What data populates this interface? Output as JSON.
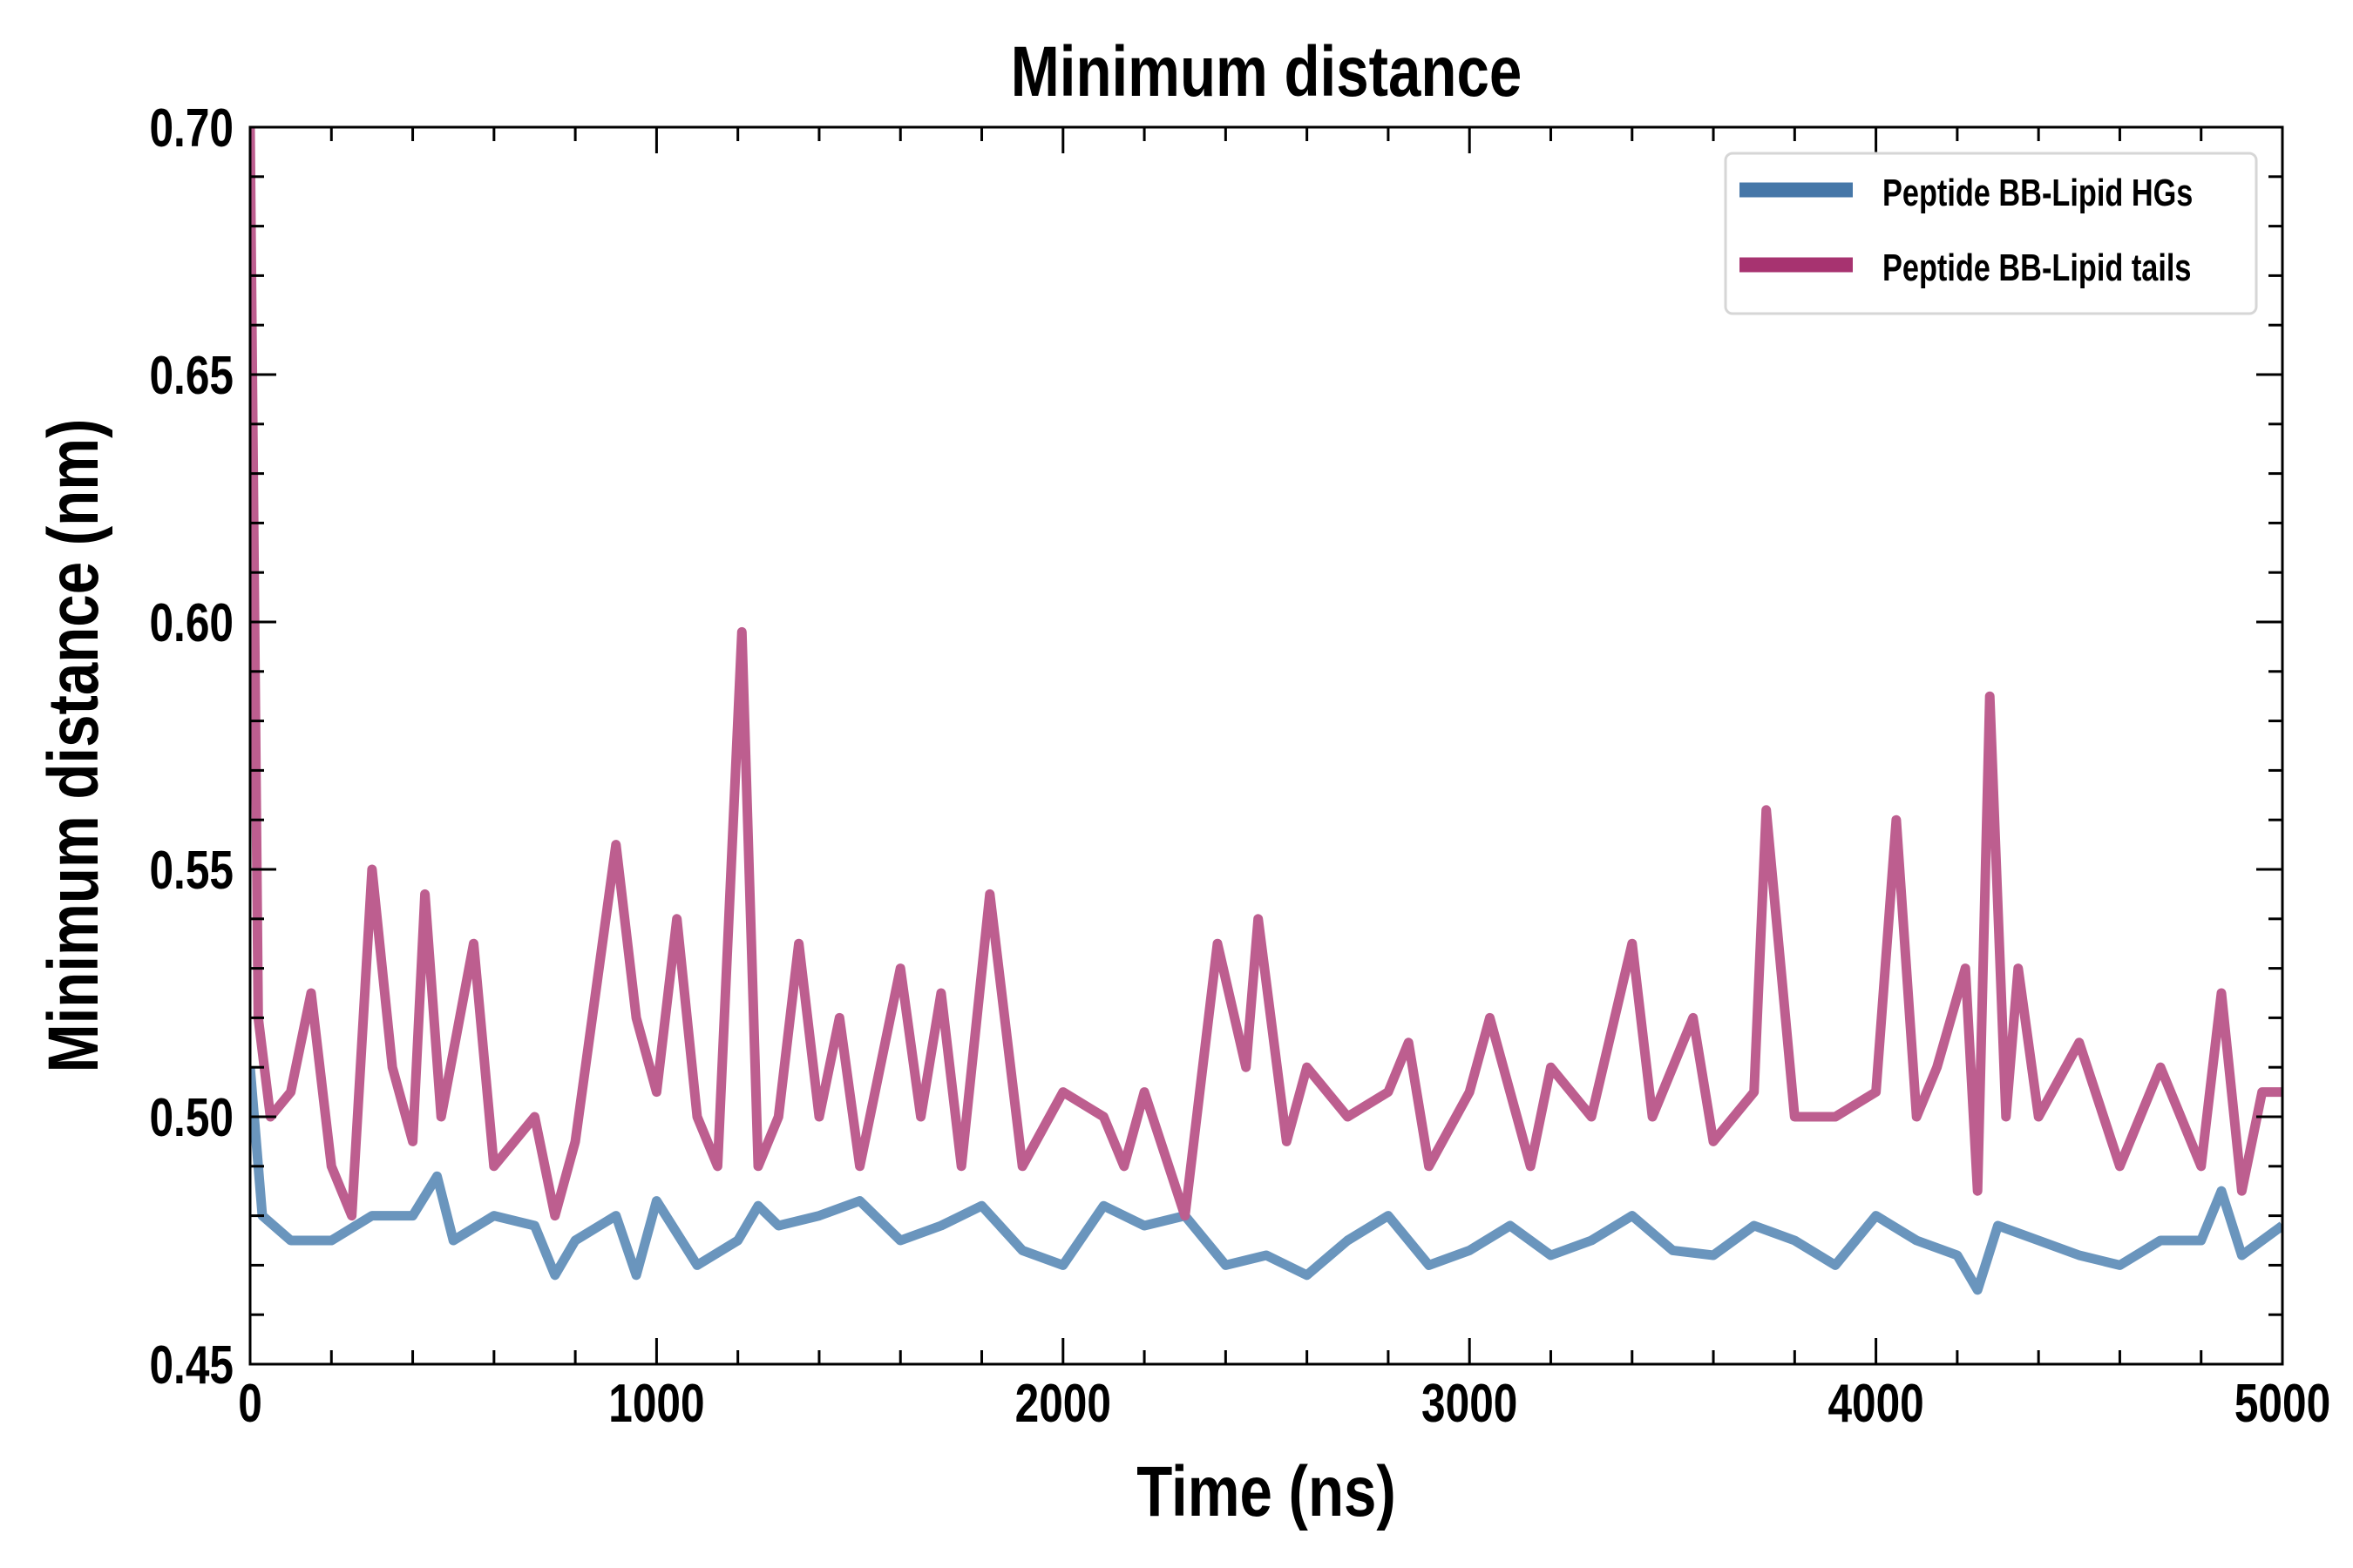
{
  "chart_data": {
    "type": "line",
    "title": "Minimum distance",
    "xlabel": "Time (ns)",
    "ylabel": "Minimum distance (nm)",
    "xlim": [
      0,
      5000
    ],
    "ylim": [
      0.45,
      0.7
    ],
    "xticks": [
      0,
      1000,
      2000,
      3000,
      4000,
      5000
    ],
    "xtick_labels": [
      "0",
      "1000",
      "2000",
      "3000",
      "4000",
      "5000"
    ],
    "yticks": [
      0.45,
      0.5,
      0.55,
      0.6,
      0.65,
      0.7
    ],
    "ytick_labels": [
      "0.45",
      "0.50",
      "0.55",
      "0.60",
      "0.65",
      "0.70"
    ],
    "x_minor_step": 200,
    "y_minor_step": 0.01,
    "grid": false,
    "legend_position": "top-right",
    "series": [
      {
        "name": "Peptide BB-Lipid HGs",
        "color": "#4677a8",
        "x": [
          0,
          30,
          100,
          200,
          300,
          400,
          460,
          500,
          600,
          700,
          750,
          800,
          900,
          950,
          1000,
          1100,
          1200,
          1250,
          1300,
          1400,
          1500,
          1600,
          1700,
          1800,
          1900,
          2000,
          2100,
          2200,
          2300,
          2400,
          2500,
          2600,
          2700,
          2800,
          2900,
          3000,
          3100,
          3200,
          3300,
          3400,
          3500,
          3600,
          3700,
          3800,
          3900,
          4000,
          4100,
          4200,
          4250,
          4300,
          4400,
          4500,
          4600,
          4700,
          4800,
          4850,
          4900,
          5000
        ],
        "y": [
          0.51,
          0.48,
          0.475,
          0.475,
          0.48,
          0.48,
          0.488,
          0.475,
          0.48,
          0.478,
          0.468,
          0.475,
          0.48,
          0.468,
          0.483,
          0.47,
          0.475,
          0.482,
          0.478,
          0.48,
          0.483,
          0.475,
          0.478,
          0.482,
          0.473,
          0.47,
          0.482,
          0.478,
          0.48,
          0.47,
          0.472,
          0.468,
          0.475,
          0.48,
          0.47,
          0.473,
          0.478,
          0.472,
          0.475,
          0.48,
          0.473,
          0.472,
          0.478,
          0.475,
          0.47,
          0.48,
          0.475,
          0.472,
          0.465,
          0.478,
          0.475,
          0.472,
          0.47,
          0.475,
          0.475,
          0.485,
          0.472,
          0.478
        ]
      },
      {
        "name": "Peptide BB-Lipid tails",
        "color": "#a73370",
        "x": [
          0,
          20,
          50,
          100,
          150,
          200,
          250,
          300,
          350,
          400,
          430,
          470,
          550,
          600,
          700,
          750,
          800,
          900,
          950,
          1000,
          1050,
          1100,
          1150,
          1210,
          1250,
          1300,
          1350,
          1400,
          1450,
          1500,
          1550,
          1600,
          1650,
          1700,
          1750,
          1820,
          1900,
          2000,
          2100,
          2150,
          2200,
          2300,
          2380,
          2450,
          2480,
          2550,
          2600,
          2700,
          2800,
          2850,
          2900,
          3000,
          3050,
          3100,
          3150,
          3200,
          3300,
          3400,
          3450,
          3550,
          3600,
          3700,
          3730,
          3800,
          3900,
          4000,
          4050,
          4100,
          4150,
          4220,
          4250,
          4280,
          4320,
          4350,
          4400,
          4500,
          4600,
          4700,
          4800,
          4850,
          4900,
          4950,
          5000
        ],
        "y": [
          0.7,
          0.52,
          0.5,
          0.505,
          0.525,
          0.49,
          0.48,
          0.55,
          0.51,
          0.495,
          0.545,
          0.5,
          0.535,
          0.49,
          0.5,
          0.48,
          0.495,
          0.555,
          0.52,
          0.505,
          0.54,
          0.5,
          0.49,
          0.598,
          0.49,
          0.5,
          0.535,
          0.5,
          0.52,
          0.49,
          0.51,
          0.53,
          0.5,
          0.525,
          0.49,
          0.545,
          0.49,
          0.505,
          0.5,
          0.49,
          0.505,
          0.48,
          0.535,
          0.51,
          0.54,
          0.495,
          0.51,
          0.5,
          0.505,
          0.515,
          0.49,
          0.505,
          0.52,
          0.505,
          0.49,
          0.51,
          0.5,
          0.535,
          0.5,
          0.52,
          0.495,
          0.505,
          0.562,
          0.5,
          0.5,
          0.505,
          0.56,
          0.5,
          0.51,
          0.53,
          0.485,
          0.585,
          0.5,
          0.53,
          0.5,
          0.515,
          0.49,
          0.51,
          0.49,
          0.525,
          0.485,
          0.505,
          0.505
        ]
      }
    ]
  }
}
